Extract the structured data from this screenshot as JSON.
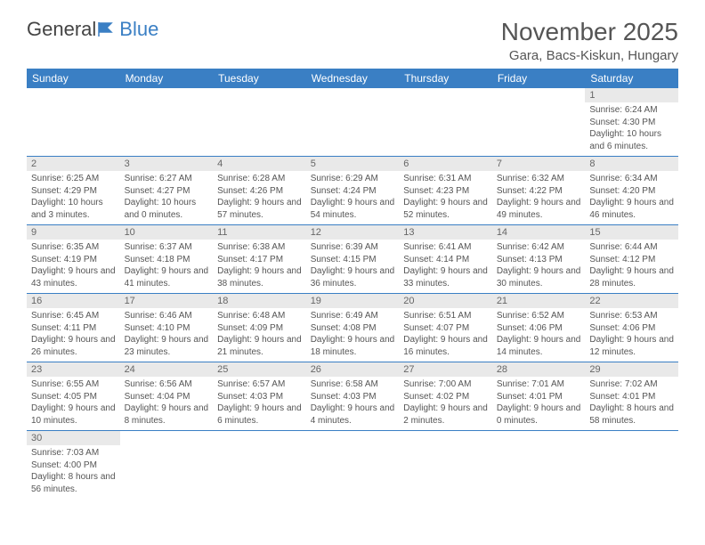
{
  "brand": {
    "part1": "General",
    "part2": "Blue"
  },
  "title": "November 2025",
  "location": "Gara, Bacs-Kiskun, Hungary",
  "colors": {
    "header_bg": "#3a7fc4",
    "header_text": "#ffffff",
    "daynum_bg": "#e9e9e9",
    "text": "#555555",
    "row_border": "#3a7fc4"
  },
  "typography": {
    "title_fontsize": 28,
    "location_fontsize": 15,
    "header_fontsize": 12,
    "day_fontsize": 11,
    "info_fontsize": 10
  },
  "weekdays": [
    "Sunday",
    "Monday",
    "Tuesday",
    "Wednesday",
    "Thursday",
    "Friday",
    "Saturday"
  ],
  "weeks": [
    [
      null,
      null,
      null,
      null,
      null,
      null,
      {
        "d": "1",
        "sr": "Sunrise: 6:24 AM",
        "ss": "Sunset: 4:30 PM",
        "dl": "Daylight: 10 hours and 6 minutes."
      }
    ],
    [
      {
        "d": "2",
        "sr": "Sunrise: 6:25 AM",
        "ss": "Sunset: 4:29 PM",
        "dl": "Daylight: 10 hours and 3 minutes."
      },
      {
        "d": "3",
        "sr": "Sunrise: 6:27 AM",
        "ss": "Sunset: 4:27 PM",
        "dl": "Daylight: 10 hours and 0 minutes."
      },
      {
        "d": "4",
        "sr": "Sunrise: 6:28 AM",
        "ss": "Sunset: 4:26 PM",
        "dl": "Daylight: 9 hours and 57 minutes."
      },
      {
        "d": "5",
        "sr": "Sunrise: 6:29 AM",
        "ss": "Sunset: 4:24 PM",
        "dl": "Daylight: 9 hours and 54 minutes."
      },
      {
        "d": "6",
        "sr": "Sunrise: 6:31 AM",
        "ss": "Sunset: 4:23 PM",
        "dl": "Daylight: 9 hours and 52 minutes."
      },
      {
        "d": "7",
        "sr": "Sunrise: 6:32 AM",
        "ss": "Sunset: 4:22 PM",
        "dl": "Daylight: 9 hours and 49 minutes."
      },
      {
        "d": "8",
        "sr": "Sunrise: 6:34 AM",
        "ss": "Sunset: 4:20 PM",
        "dl": "Daylight: 9 hours and 46 minutes."
      }
    ],
    [
      {
        "d": "9",
        "sr": "Sunrise: 6:35 AM",
        "ss": "Sunset: 4:19 PM",
        "dl": "Daylight: 9 hours and 43 minutes."
      },
      {
        "d": "10",
        "sr": "Sunrise: 6:37 AM",
        "ss": "Sunset: 4:18 PM",
        "dl": "Daylight: 9 hours and 41 minutes."
      },
      {
        "d": "11",
        "sr": "Sunrise: 6:38 AM",
        "ss": "Sunset: 4:17 PM",
        "dl": "Daylight: 9 hours and 38 minutes."
      },
      {
        "d": "12",
        "sr": "Sunrise: 6:39 AM",
        "ss": "Sunset: 4:15 PM",
        "dl": "Daylight: 9 hours and 36 minutes."
      },
      {
        "d": "13",
        "sr": "Sunrise: 6:41 AM",
        "ss": "Sunset: 4:14 PM",
        "dl": "Daylight: 9 hours and 33 minutes."
      },
      {
        "d": "14",
        "sr": "Sunrise: 6:42 AM",
        "ss": "Sunset: 4:13 PM",
        "dl": "Daylight: 9 hours and 30 minutes."
      },
      {
        "d": "15",
        "sr": "Sunrise: 6:44 AM",
        "ss": "Sunset: 4:12 PM",
        "dl": "Daylight: 9 hours and 28 minutes."
      }
    ],
    [
      {
        "d": "16",
        "sr": "Sunrise: 6:45 AM",
        "ss": "Sunset: 4:11 PM",
        "dl": "Daylight: 9 hours and 26 minutes."
      },
      {
        "d": "17",
        "sr": "Sunrise: 6:46 AM",
        "ss": "Sunset: 4:10 PM",
        "dl": "Daylight: 9 hours and 23 minutes."
      },
      {
        "d": "18",
        "sr": "Sunrise: 6:48 AM",
        "ss": "Sunset: 4:09 PM",
        "dl": "Daylight: 9 hours and 21 minutes."
      },
      {
        "d": "19",
        "sr": "Sunrise: 6:49 AM",
        "ss": "Sunset: 4:08 PM",
        "dl": "Daylight: 9 hours and 18 minutes."
      },
      {
        "d": "20",
        "sr": "Sunrise: 6:51 AM",
        "ss": "Sunset: 4:07 PM",
        "dl": "Daylight: 9 hours and 16 minutes."
      },
      {
        "d": "21",
        "sr": "Sunrise: 6:52 AM",
        "ss": "Sunset: 4:06 PM",
        "dl": "Daylight: 9 hours and 14 minutes."
      },
      {
        "d": "22",
        "sr": "Sunrise: 6:53 AM",
        "ss": "Sunset: 4:06 PM",
        "dl": "Daylight: 9 hours and 12 minutes."
      }
    ],
    [
      {
        "d": "23",
        "sr": "Sunrise: 6:55 AM",
        "ss": "Sunset: 4:05 PM",
        "dl": "Daylight: 9 hours and 10 minutes."
      },
      {
        "d": "24",
        "sr": "Sunrise: 6:56 AM",
        "ss": "Sunset: 4:04 PM",
        "dl": "Daylight: 9 hours and 8 minutes."
      },
      {
        "d": "25",
        "sr": "Sunrise: 6:57 AM",
        "ss": "Sunset: 4:03 PM",
        "dl": "Daylight: 9 hours and 6 minutes."
      },
      {
        "d": "26",
        "sr": "Sunrise: 6:58 AM",
        "ss": "Sunset: 4:03 PM",
        "dl": "Daylight: 9 hours and 4 minutes."
      },
      {
        "d": "27",
        "sr": "Sunrise: 7:00 AM",
        "ss": "Sunset: 4:02 PM",
        "dl": "Daylight: 9 hours and 2 minutes."
      },
      {
        "d": "28",
        "sr": "Sunrise: 7:01 AM",
        "ss": "Sunset: 4:01 PM",
        "dl": "Daylight: 9 hours and 0 minutes."
      },
      {
        "d": "29",
        "sr": "Sunrise: 7:02 AM",
        "ss": "Sunset: 4:01 PM",
        "dl": "Daylight: 8 hours and 58 minutes."
      }
    ],
    [
      {
        "d": "30",
        "sr": "Sunrise: 7:03 AM",
        "ss": "Sunset: 4:00 PM",
        "dl": "Daylight: 8 hours and 56 minutes."
      },
      null,
      null,
      null,
      null,
      null,
      null
    ]
  ]
}
